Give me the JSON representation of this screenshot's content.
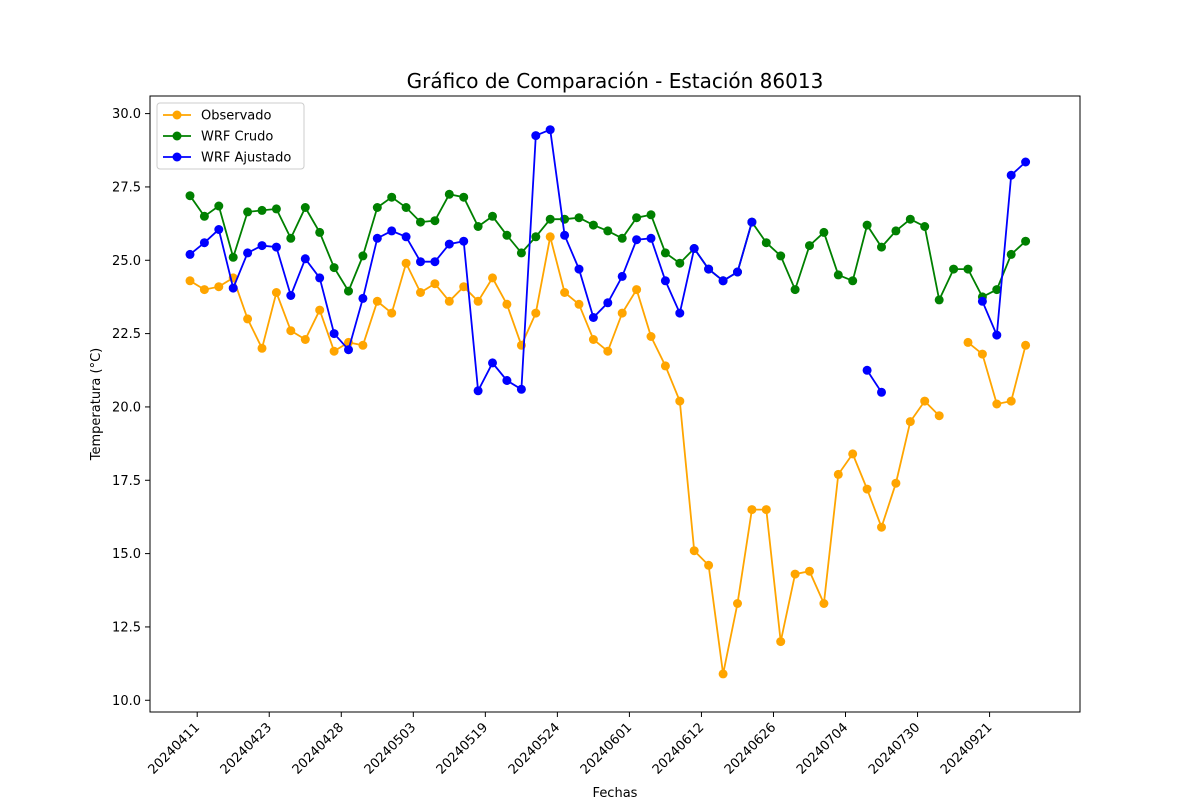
{
  "chart_data": {
    "type": "line",
    "title": "Gráfico de Comparación - Estación 86013",
    "xlabel": "Fechas",
    "ylabel": "Temperatura (°C)",
    "ylim": [
      10.0,
      30.0
    ],
    "yticks": [
      "10.0",
      "12.5",
      "15.0",
      "17.5",
      "20.0",
      "22.5",
      "25.0",
      "27.5",
      "30.0"
    ],
    "xtick_labels": [
      "20240411",
      "20240423",
      "20240428",
      "20240503",
      "20240519",
      "20240524",
      "20240601",
      "20240612",
      "20240626",
      "20240704",
      "20240730",
      "20240921"
    ],
    "xtick_positions": [
      0.5,
      5.5,
      10.5,
      15.5,
      20.5,
      25.5,
      30.5,
      35.5,
      40.5,
      45.5,
      50.5,
      55.5
    ],
    "x_count": 60,
    "grid": false,
    "legend_position": "top-left",
    "series": [
      {
        "name": "Observado",
        "color": "#ffa500",
        "values": [
          24.3,
          24.0,
          24.1,
          24.4,
          23.0,
          22.0,
          23.9,
          22.6,
          22.3,
          23.3,
          21.9,
          22.2,
          22.1,
          23.6,
          23.2,
          24.9,
          23.9,
          24.2,
          23.6,
          24.1,
          23.6,
          24.4,
          23.5,
          22.1,
          23.2,
          25.8,
          23.9,
          23.5,
          22.3,
          21.9,
          23.2,
          24.0,
          22.4,
          21.4,
          20.2,
          15.1,
          14.6,
          10.9,
          13.3,
          16.5,
          16.5,
          12.0,
          14.3,
          14.4,
          13.3,
          17.7,
          18.4,
          17.2,
          15.9,
          17.4,
          19.5,
          20.2,
          19.7,
          null,
          22.2,
          21.8,
          20.1,
          20.2,
          22.1,
          null
        ]
      },
      {
        "name": "WRF Crudo",
        "color": "#008000",
        "values": [
          27.2,
          26.5,
          26.85,
          25.1,
          26.65,
          26.7,
          26.75,
          25.75,
          26.8,
          25.95,
          24.75,
          23.95,
          25.15,
          26.8,
          27.15,
          26.8,
          26.3,
          26.35,
          27.25,
          27.15,
          26.15,
          26.5,
          25.85,
          25.25,
          25.8,
          26.4,
          26.4,
          26.45,
          26.2,
          26.0,
          25.75,
          26.45,
          26.55,
          25.25,
          24.9,
          25.4,
          24.7,
          24.3,
          24.6,
          26.3,
          25.6,
          25.15,
          24.0,
          25.5,
          25.95,
          24.5,
          24.3,
          26.2,
          25.45,
          26.0,
          26.4,
          26.15,
          23.65,
          24.7,
          24.7,
          23.75,
          24.0,
          25.2,
          25.65,
          null
        ]
      },
      {
        "name": "WRF Ajustado",
        "color": "#0000ff",
        "values": [
          25.2,
          25.6,
          26.05,
          24.05,
          25.25,
          25.5,
          25.45,
          23.8,
          25.05,
          24.4,
          22.5,
          21.95,
          23.7,
          25.75,
          26.0,
          25.8,
          24.95,
          24.95,
          25.55,
          25.65,
          20.55,
          21.5,
          20.9,
          20.6,
          29.25,
          29.45,
          25.85,
          24.7,
          23.05,
          23.55,
          24.45,
          25.7,
          25.75,
          24.3,
          23.2,
          25.4,
          24.7,
          24.3,
          24.6,
          26.3,
          null,
          null,
          null,
          null,
          null,
          null,
          null,
          21.25,
          20.5,
          null,
          null,
          null,
          null,
          null,
          null,
          23.6,
          22.45,
          27.9,
          28.35,
          null
        ]
      }
    ]
  }
}
